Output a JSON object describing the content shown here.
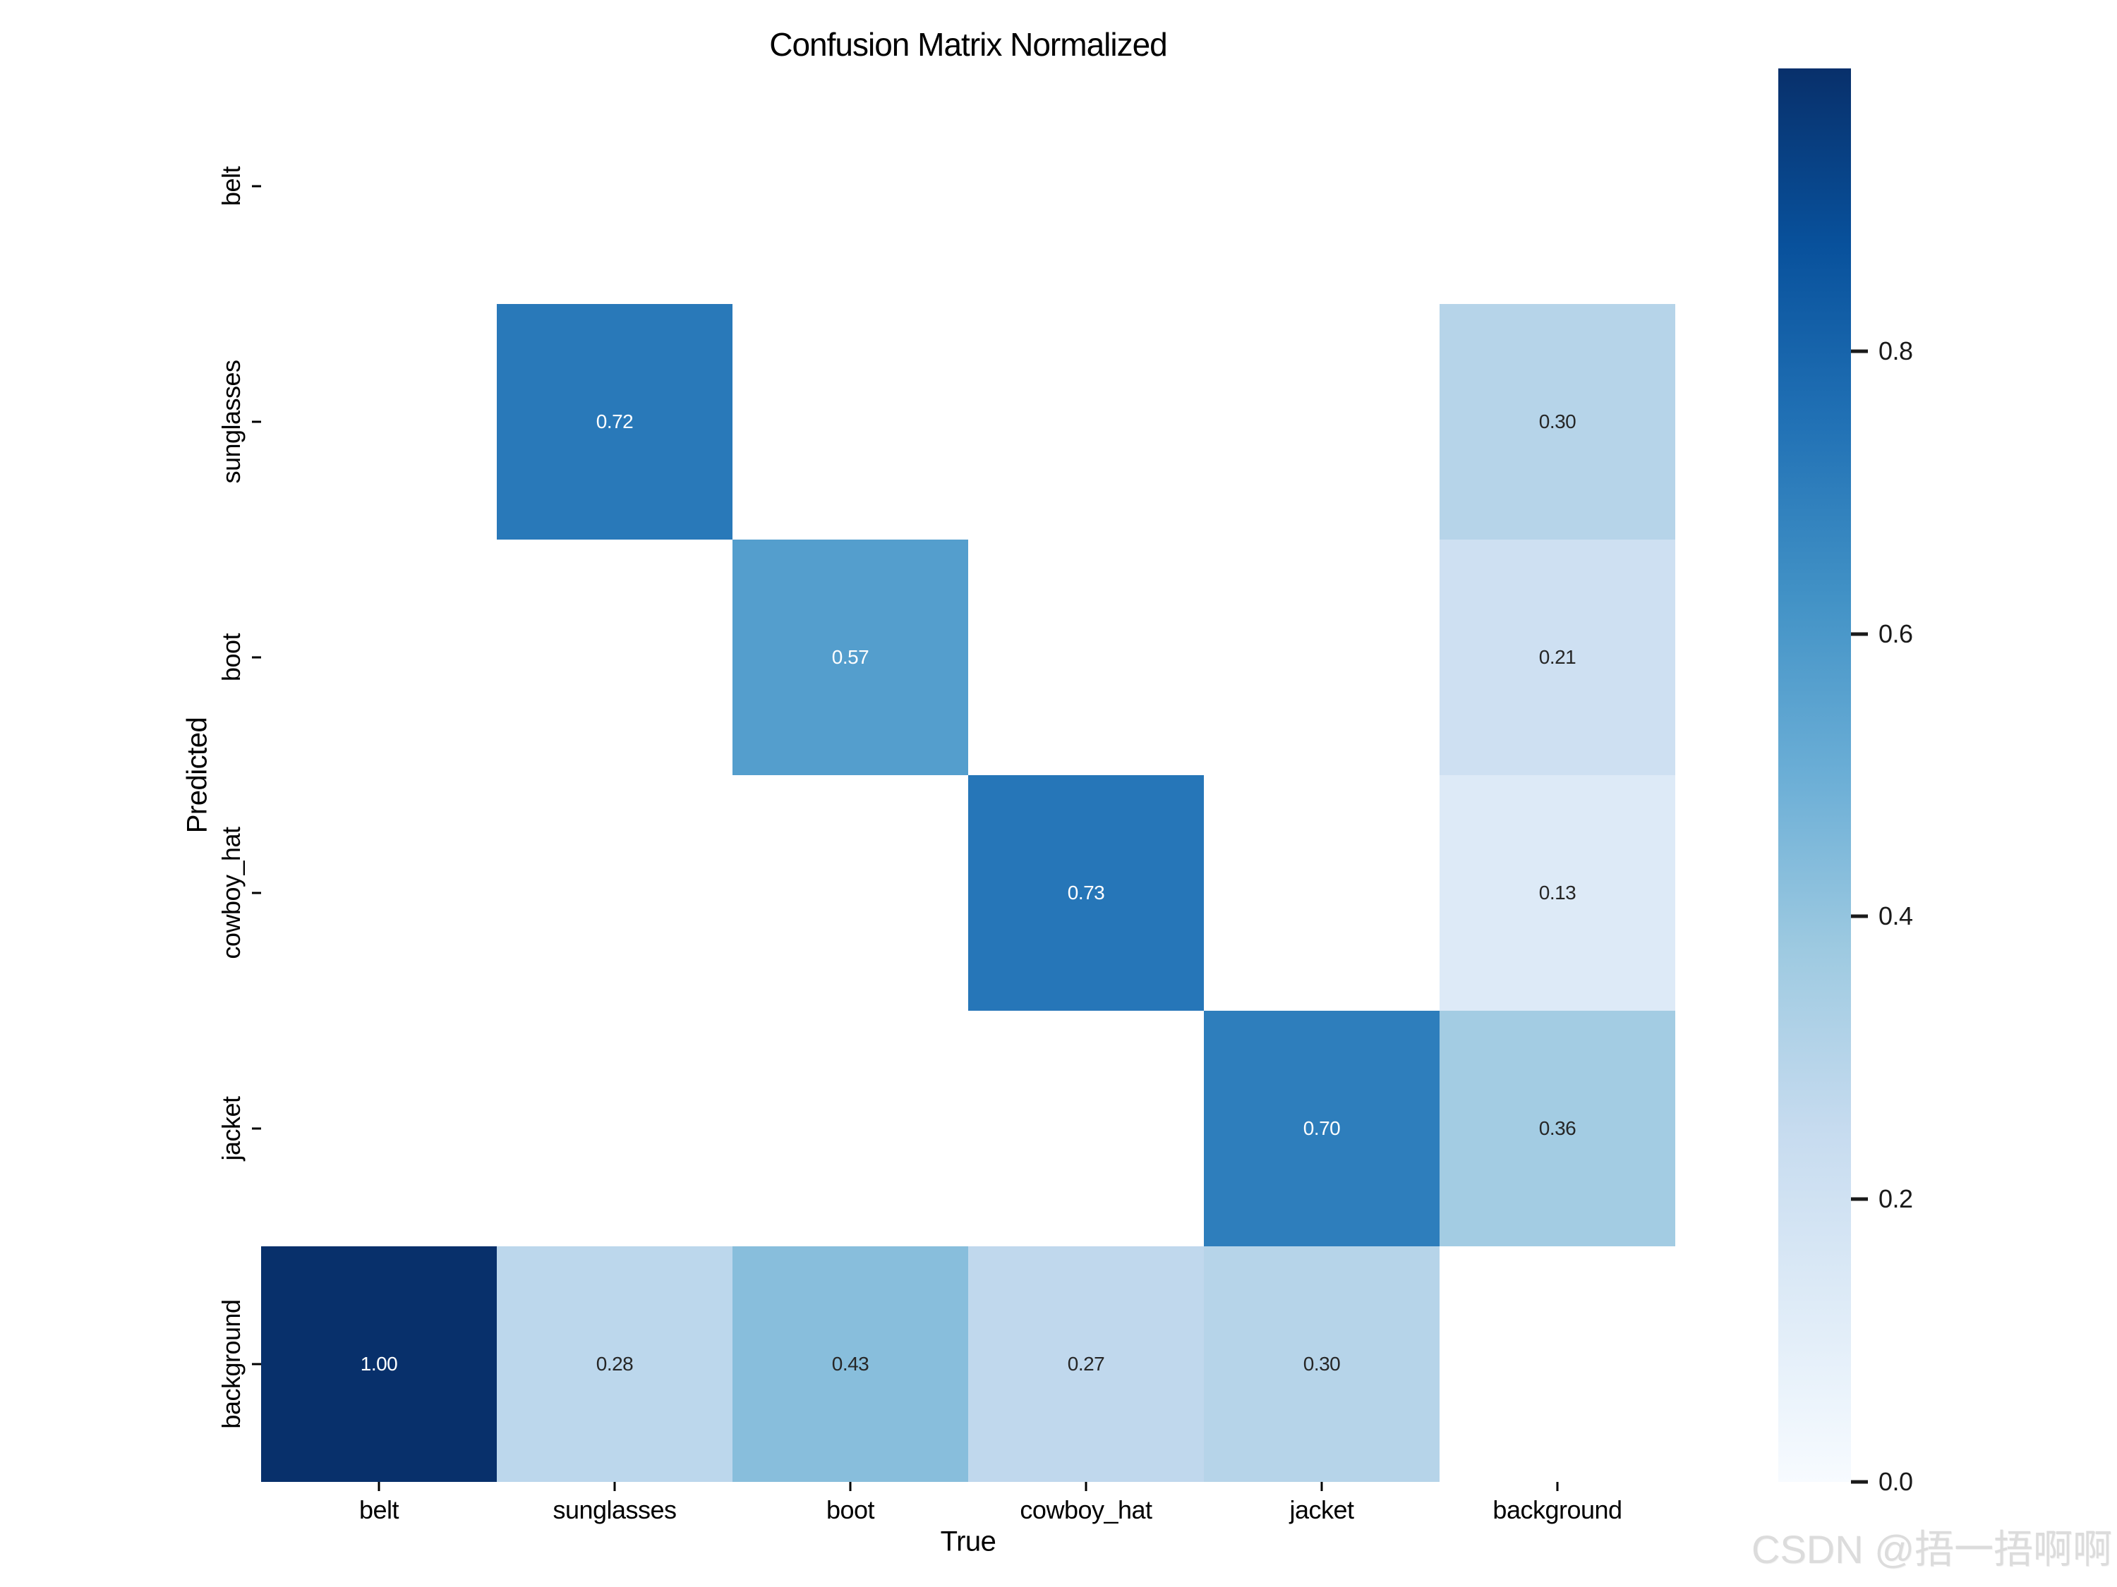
{
  "title": "Confusion Matrix Normalized",
  "x_axis": {
    "label": "True",
    "categories": [
      "belt",
      "sunglasses",
      "boot",
      "cowboy_hat",
      "jacket",
      "background"
    ]
  },
  "y_axis": {
    "label": "Predicted",
    "categories": [
      "belt",
      "sunglasses",
      "boot",
      "cowboy_hat",
      "jacket",
      "background"
    ]
  },
  "colorbar": {
    "tick_labels": [
      "0.8",
      "0.6",
      "0.4",
      "0.2",
      "0.0"
    ],
    "tick_values": [
      0.8,
      0.6,
      0.4,
      0.2,
      0.0
    ],
    "min": 0.0,
    "max": 1.0,
    "colormap": "Blues"
  },
  "colors": {
    "background": "#ffffff",
    "masked_cell": "#ffffff",
    "annotation_light": "#ffffff",
    "annotation_dark": "#262626",
    "axis_text": "#000000",
    "watermark_text": "#dcdcdc",
    "blues_stops": [
      [
        0.0,
        "#f7fbff"
      ],
      [
        0.125,
        "#deebf7"
      ],
      [
        0.25,
        "#c6dbef"
      ],
      [
        0.375,
        "#9ecae1"
      ],
      [
        0.5,
        "#6baed6"
      ],
      [
        0.625,
        "#4292c6"
      ],
      [
        0.75,
        "#2171b5"
      ],
      [
        0.875,
        "#08519c"
      ],
      [
        1.0,
        "#08306b"
      ]
    ]
  },
  "watermark": "CSDN @捂一捂啊啊",
  "chart_data": {
    "type": "heatmap",
    "title": "Confusion Matrix Normalized",
    "xlabel": "True",
    "ylabel": "Predicted",
    "x_categories": [
      "belt",
      "sunglasses",
      "boot",
      "cowboy_hat",
      "jacket",
      "background"
    ],
    "y_categories": [
      "belt",
      "sunglasses",
      "boot",
      "cowboy_hat",
      "jacket",
      "background"
    ],
    "values": [
      [
        null,
        null,
        null,
        null,
        null,
        null
      ],
      [
        null,
        0.72,
        null,
        null,
        null,
        0.3
      ],
      [
        null,
        null,
        0.57,
        null,
        null,
        0.21
      ],
      [
        null,
        null,
        null,
        0.73,
        null,
        0.13
      ],
      [
        null,
        null,
        null,
        null,
        0.7,
        0.36
      ],
      [
        1.0,
        0.28,
        0.43,
        0.27,
        0.3,
        null
      ]
    ],
    "annotation_format": "2-decimal",
    "vmin": 0.0,
    "vmax": 1.0,
    "colormap": "Blues",
    "colorbar_ticks": [
      0.8,
      0.6,
      0.4,
      0.2,
      0.0
    ],
    "legend_position": "right-colorbar",
    "grid": false,
    "masked_cells_rendered_white": true
  }
}
